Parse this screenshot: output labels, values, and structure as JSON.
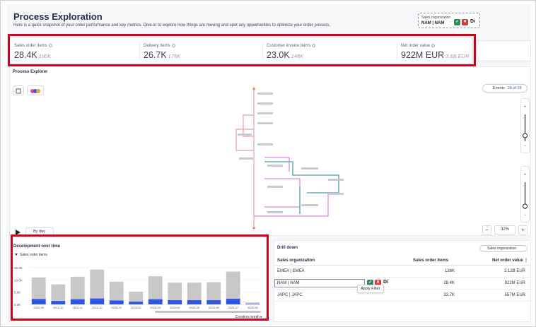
{
  "header": {
    "title": "Process Exploration",
    "subtitle": "Here is a quick snapshot of your order performance and key metrics. Dive-in to explore how things are moving and spot any opportunities to optimize your order process."
  },
  "filter": {
    "label": "Sales organization",
    "value": "NAM | NAM",
    "di_label": "Di"
  },
  "kpis": [
    {
      "label": "Sales order items",
      "value": "28.4K",
      "sub": "190K"
    },
    {
      "label": "Delivery items",
      "value": "26.7K",
      "sub": "176K"
    },
    {
      "label": "Customer invoice items",
      "value": "23.0K",
      "sub": "148K"
    },
    {
      "label": "Net order value",
      "value": "922M EUR",
      "sub": "3.6B EUR"
    }
  ],
  "explorer": {
    "title": "Process Explorer",
    "events_label": "Events",
    "events_count": "28 of 28",
    "zoom_level": "32%",
    "zoom_minus": "−",
    "zoom_plus": "+",
    "playback_label": "By day"
  },
  "chart_data": {
    "type": "bar",
    "title": "Development over time",
    "legend": [
      "Sales order items"
    ],
    "xlabel": "Creation month",
    "categories": [
      "2024-09",
      "2024-10",
      "2024-11",
      "2024-12",
      "2025-01",
      "2025-02",
      "2025-03",
      "2025-04",
      "2025-05",
      "2025-06",
      "2025-07",
      "2025-08"
    ],
    "ylim": [
      0,
      15000
    ],
    "yticks": [
      "15.0K",
      "10.0K",
      "5.0K",
      "0.0K"
    ],
    "series": [
      {
        "name": "Sales order items",
        "color": "#c8c8c8",
        "values": [
          11000,
          8200,
          11300,
          14200,
          9300,
          5200,
          11500,
          8900,
          8900,
          9100,
          13400,
          800
        ]
      },
      {
        "color": "#2f55e6",
        "values": [
          2200,
          1400,
          2100,
          2400,
          1600,
          1100,
          2100,
          1700,
          1700,
          1700,
          2300,
          200
        ]
      }
    ],
    "grid": true
  },
  "drilldown": {
    "title": "Drill down",
    "select_label": "Sales organization",
    "columns": [
      "Sales organization",
      "Sales order items",
      "Net order value"
    ],
    "rows": [
      {
        "org": "EMEA | EMEA",
        "items": "126K",
        "value": "2.12B EUR"
      },
      {
        "org": "NAM | NAM",
        "items": "28.4K",
        "value": "922M EUR"
      },
      {
        "org": "JAPC | JAPC",
        "items": "33.7K",
        "value": "557M EUR"
      }
    ],
    "tooltip": "Apply Filter",
    "more_label": "⋮"
  },
  "colors": {
    "accent_red": "#d0021b",
    "brand_blue": "#2f55e6",
    "bar_grey": "#c8c8c8"
  }
}
